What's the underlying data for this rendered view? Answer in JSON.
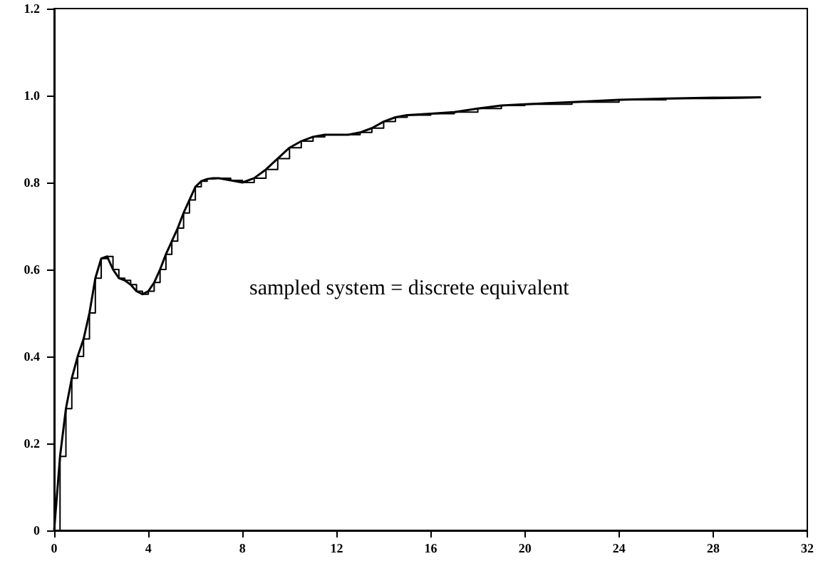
{
  "chart_data": {
    "type": "line",
    "series": [
      {
        "color": "#000000",
        "x": [
          0,
          0.25,
          0.5,
          0.75,
          1,
          1.25,
          1.5,
          1.75,
          2,
          2.25,
          2.5,
          2.75,
          3,
          3.25,
          3.5,
          3.75,
          4,
          4.25,
          4.5,
          4.75,
          5,
          5.25,
          5.5,
          5.75,
          6,
          6.25,
          6.5,
          6.75,
          7,
          7.5,
          8,
          8.5,
          9,
          9.5,
          10,
          10.5,
          11,
          11.5,
          12,
          12.5,
          13,
          13.5,
          14,
          14.5,
          15,
          16,
          17,
          18,
          19,
          20,
          22,
          24,
          26,
          28,
          30
        ],
        "values": [
          0,
          0.17,
          0.28,
          0.35,
          0.4,
          0.44,
          0.5,
          0.58,
          0.625,
          0.63,
          0.6,
          0.58,
          0.575,
          0.565,
          0.55,
          0.543,
          0.55,
          0.57,
          0.6,
          0.635,
          0.665,
          0.695,
          0.73,
          0.76,
          0.79,
          0.803,
          0.808,
          0.81,
          0.81,
          0.805,
          0.8,
          0.81,
          0.83,
          0.855,
          0.88,
          0.895,
          0.905,
          0.91,
          0.91,
          0.91,
          0.915,
          0.925,
          0.94,
          0.95,
          0.955,
          0.958,
          0.962,
          0.97,
          0.977,
          0.98,
          0.985,
          0.99,
          0.993,
          0.995,
          0.996
        ]
      },
      {
        "type": "step",
        "color": "#000000",
        "x": [
          0,
          0.25,
          0.5,
          0.75,
          1,
          1.25,
          1.5,
          1.75,
          2,
          2.25,
          2.5,
          2.75,
          3,
          3.25,
          3.5,
          3.75,
          4,
          4.25,
          4.5,
          4.75,
          5,
          5.25,
          5.5,
          5.75,
          6,
          6.25,
          6.5,
          6.75,
          7,
          7.5,
          8,
          8.5,
          9,
          9.5,
          10,
          10.5,
          11,
          11.5,
          12,
          12.5,
          13,
          13.5,
          14,
          14.5,
          15,
          16,
          17,
          18,
          19,
          20,
          22,
          24,
          26,
          28,
          30
        ],
        "values": [
          0,
          0.17,
          0.28,
          0.35,
          0.4,
          0.44,
          0.5,
          0.58,
          0.625,
          0.63,
          0.6,
          0.58,
          0.575,
          0.565,
          0.55,
          0.543,
          0.55,
          0.57,
          0.6,
          0.635,
          0.665,
          0.695,
          0.73,
          0.76,
          0.79,
          0.803,
          0.808,
          0.81,
          0.81,
          0.805,
          0.8,
          0.81,
          0.83,
          0.855,
          0.88,
          0.895,
          0.905,
          0.91,
          0.91,
          0.91,
          0.915,
          0.925,
          0.94,
          0.95,
          0.955,
          0.958,
          0.962,
          0.97,
          0.977,
          0.98,
          0.985,
          0.99,
          0.993,
          0.995,
          0.996
        ]
      }
    ],
    "xlim": [
      0,
      32
    ],
    "xticks": [
      0,
      4,
      8,
      12,
      16,
      20,
      24,
      28,
      32
    ],
    "ylim": [
      0,
      1.2
    ],
    "yticks": [
      {
        "value": 0,
        "label": "0"
      },
      0.2,
      0.4,
      0.6,
      0.8,
      {
        "value": 1,
        "label": "1.0"
      },
      1.2
    ],
    "annotations": [
      "sampled system = discrete equivalent"
    ],
    "grid": false,
    "marker": "none",
    "line_style": "solid"
  }
}
